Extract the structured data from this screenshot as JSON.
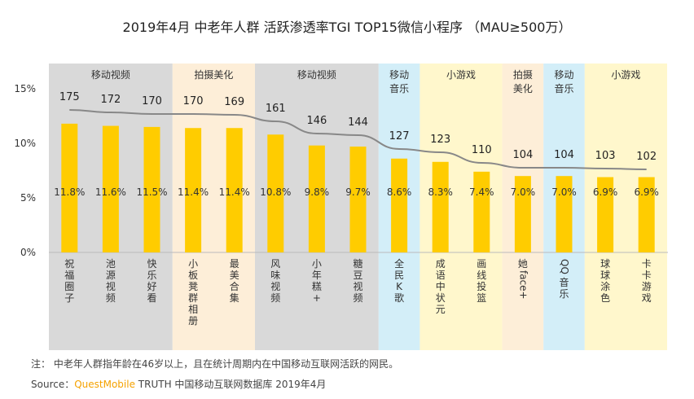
{
  "title": "2019年4月 中老年人群 活跃渗透率TGI TOP15微信小程序 （MAU≥500万）",
  "chart_data": {
    "type": "bar+line",
    "categories": [
      "祝福圈子",
      "池源视频",
      "快乐好看",
      "小板凳群相册",
      "最美合集",
      "风味视频",
      "小年糕+",
      "糖豆视频",
      "全民K歌",
      "成语中状元",
      "画线投篮",
      "她face+",
      "QQ音乐",
      "球球涂色",
      "卡卡游戏"
    ],
    "series": [
      {
        "values": [
          11.8,
          11.6,
          11.5,
          11.4,
          11.4,
          10.8,
          9.8,
          9.7,
          8.6,
          8.3,
          7.4,
          7.0,
          7.0,
          6.9,
          6.9
        ],
        "labels": [
          "11.8%",
          "11.6%",
          "11.5%",
          "11.4%",
          "11.4%",
          "10.8%",
          "9.8%",
          "9.7%",
          "8.6%",
          "8.3%",
          "7.4%",
          "7.0%",
          "7.0%",
          "6.9%",
          "6.9%"
        ],
        "color": "#ffcc00"
      },
      {
        "values": [
          175,
          172,
          170,
          170,
          169,
          161,
          146,
          144,
          127,
          123,
          110,
          104,
          104,
          103,
          102
        ],
        "color": "#888888"
      }
    ],
    "groups": [
      {
        "label": "移动视频",
        "start": 0,
        "end": 2,
        "color": "#d9d9d9"
      },
      {
        "label": "拍摄美化",
        "start": 3,
        "end": 4,
        "color": "#fdeed8"
      },
      {
        "label": "移动视频",
        "start": 5,
        "end": 7,
        "color": "#d9d9d9"
      },
      {
        "label": "移动\n音乐",
        "start": 8,
        "end": 8,
        "color": "#d3eef8"
      },
      {
        "label": "小游戏",
        "start": 9,
        "end": 10,
        "color": "#fff7cc"
      },
      {
        "label": "拍摄\n美化",
        "start": 11,
        "end": 11,
        "color": "#fdeed8"
      },
      {
        "label": "移动\n音乐",
        "start": 12,
        "end": 12,
        "color": "#d3eef8"
      },
      {
        "label": "小游戏",
        "start": 13,
        "end": 14,
        "color": "#fff7cc"
      }
    ],
    "yticks": [
      "0%",
      "5%",
      "10%",
      "15%"
    ],
    "ylim": [
      0,
      15
    ]
  },
  "note": "注：  中老年人群指年龄在46岁以上，且在统计周期内在中国移动互联网活跃的网民。",
  "source_prefix": "Source：",
  "source_brand": "QuestMobile",
  "source_rest": " TRUTH 中国移动互联网数据库 2019年4月"
}
